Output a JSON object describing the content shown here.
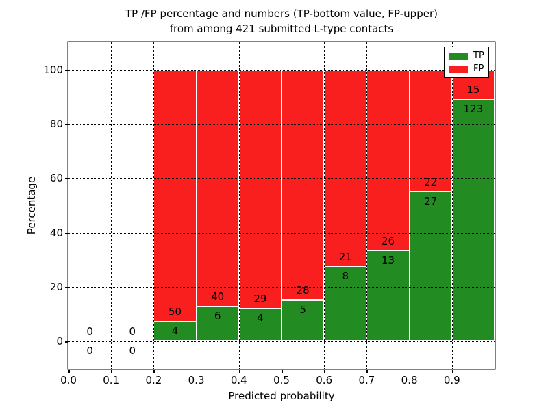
{
  "chart_data": {
    "type": "bar",
    "stacked": true,
    "title": "TP /FP percentage and numbers (TP-bottom value, FP-upper)\nfrom among 421 submitted L-type contacts",
    "title_line1": "TP /FP percentage and numbers (TP-bottom value, FP-upper)",
    "title_line2": "from among 421 submitted L-type contacts",
    "xlabel": "Predicted probability",
    "ylabel": "Percentage",
    "xlim": [
      0.0,
      1.0
    ],
    "ylim": [
      -10,
      110
    ],
    "x_tick_labels": [
      "0.0",
      "0.1",
      "0.2",
      "0.3",
      "0.4",
      "0.5",
      "0.6",
      "0.7",
      "0.8",
      "0.9"
    ],
    "y_tick_values": [
      0,
      20,
      40,
      60,
      80,
      100
    ],
    "grid": true,
    "bar_note": "each bar is a stacked percentage (TP bottom, FP top) summing to 100%; labels show raw counts",
    "bins": [
      {
        "range": [
          0.0,
          0.1
        ],
        "tp": 0,
        "fp": 0
      },
      {
        "range": [
          0.1,
          0.2
        ],
        "tp": 0,
        "fp": 0
      },
      {
        "range": [
          0.2,
          0.3
        ],
        "tp": 4,
        "fp": 50
      },
      {
        "range": [
          0.3,
          0.4
        ],
        "tp": 6,
        "fp": 40
      },
      {
        "range": [
          0.4,
          0.5
        ],
        "tp": 4,
        "fp": 29
      },
      {
        "range": [
          0.5,
          0.6
        ],
        "tp": 5,
        "fp": 28
      },
      {
        "range": [
          0.6,
          0.7
        ],
        "tp": 8,
        "fp": 21
      },
      {
        "range": [
          0.7,
          0.8
        ],
        "tp": 13,
        "fp": 26
      },
      {
        "range": [
          0.8,
          0.9
        ],
        "tp": 27,
        "fp": 22
      },
      {
        "range": [
          0.9,
          1.0
        ],
        "tp": 123,
        "fp": 15
      }
    ],
    "legend": {
      "position": "upper right",
      "entries": [
        {
          "label": "TP",
          "color": "#228b22"
        },
        {
          "label": "FP",
          "color": "#fa1f1f"
        }
      ]
    },
    "colors": {
      "tp": "#228b22",
      "fp": "#fa1f1f",
      "grid": "#000000",
      "text": "#000000",
      "background": "#ffffff"
    }
  }
}
